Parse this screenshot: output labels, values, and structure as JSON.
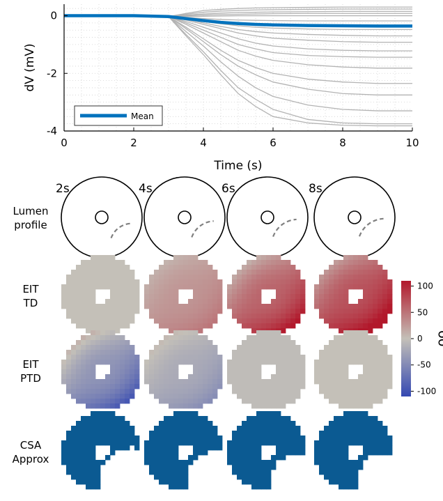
{
  "chart_data": [
    {
      "type": "line",
      "xlabel": "Time (s)",
      "ylabel": "dV (mV)",
      "xlim": [
        0,
        10
      ],
      "ylim": [
        -4,
        0.4
      ],
      "xticks": [
        0,
        2,
        4,
        6,
        8,
        10
      ],
      "yticks": [
        0,
        -2,
        -4
      ],
      "x_tick_labels": [
        "0",
        "2",
        "4",
        "6",
        "8",
        "10"
      ],
      "y_tick_labels": [
        "0",
        "-2",
        "-4"
      ],
      "grid": "dotted",
      "legend_position": "bottom-left",
      "trial_color": "#b3b3b3",
      "mean_color": "#0072bd",
      "x": [
        0,
        1,
        2,
        3,
        3.5,
        4,
        4.5,
        5,
        5.5,
        6,
        7,
        8,
        9,
        10
      ],
      "series": [
        {
          "values": [
            0,
            0,
            0,
            -0.03,
            0.08,
            0.18,
            0.22,
            0.25,
            0.27,
            0.28,
            0.29,
            0.3,
            0.3,
            0.3
          ]
        },
        {
          "values": [
            0,
            0,
            0,
            -0.03,
            0.05,
            0.12,
            0.16,
            0.18,
            0.2,
            0.21,
            0.22,
            0.23,
            0.23,
            0.23
          ]
        },
        {
          "values": [
            0,
            0,
            0,
            -0.03,
            0.02,
            0.06,
            0.09,
            0.11,
            0.12,
            0.13,
            0.14,
            0.15,
            0.15,
            0.15
          ]
        },
        {
          "values": [
            0,
            0,
            0,
            -0.03,
            0.0,
            0.02,
            0.04,
            0.05,
            0.06,
            0.07,
            0.08,
            0.08,
            0.08,
            0.08
          ]
        },
        {
          "values": [
            0,
            0,
            0,
            -0.03,
            -0.03,
            -0.02,
            -0.01,
            0.0,
            0.0,
            0.0,
            0.0,
            0.0,
            0.0,
            0.0
          ]
        },
        {
          "values": [
            0,
            0,
            0,
            -0.03,
            -0.06,
            -0.1,
            -0.13,
            -0.15,
            -0.16,
            -0.17,
            -0.18,
            -0.18,
            -0.18,
            -0.18
          ]
        },
        {
          "values": [
            0,
            0,
            0,
            -0.03,
            -0.08,
            -0.15,
            -0.2,
            -0.25,
            -0.28,
            -0.3,
            -0.32,
            -0.33,
            -0.33,
            -0.33
          ]
        },
        {
          "values": [
            0,
            0,
            0,
            -0.03,
            -0.1,
            -0.2,
            -0.28,
            -0.35,
            -0.4,
            -0.43,
            -0.46,
            -0.48,
            -0.48,
            -0.48
          ]
        },
        {
          "values": [
            0,
            0,
            0,
            -0.03,
            -0.12,
            -0.25,
            -0.37,
            -0.48,
            -0.55,
            -0.6,
            -0.65,
            -0.68,
            -0.7,
            -0.7
          ]
        },
        {
          "values": [
            0,
            0,
            0,
            -0.03,
            -0.15,
            -0.3,
            -0.45,
            -0.6,
            -0.7,
            -0.78,
            -0.85,
            -0.9,
            -0.92,
            -0.92
          ]
        },
        {
          "values": [
            0,
            0,
            0,
            -0.03,
            -0.2,
            -0.4,
            -0.6,
            -0.8,
            -0.95,
            -1.05,
            -1.15,
            -1.2,
            -1.22,
            -1.22
          ]
        },
        {
          "values": [
            0,
            0,
            0,
            -0.03,
            -0.25,
            -0.5,
            -0.75,
            -1.0,
            -1.15,
            -1.28,
            -1.38,
            -1.42,
            -1.44,
            -1.44
          ]
        },
        {
          "values": [
            0,
            0,
            0,
            -0.03,
            -0.3,
            -0.6,
            -0.9,
            -1.2,
            -1.4,
            -1.55,
            -1.7,
            -1.78,
            -1.82,
            -1.82
          ]
        },
        {
          "values": [
            0,
            0,
            0,
            -0.03,
            -0.4,
            -0.8,
            -1.2,
            -1.55,
            -1.8,
            -2.0,
            -2.2,
            -2.3,
            -2.35,
            -2.35
          ]
        },
        {
          "values": [
            0,
            0,
            0,
            -0.03,
            -0.45,
            -0.9,
            -1.35,
            -1.75,
            -2.05,
            -2.3,
            -2.55,
            -2.7,
            -2.75,
            -2.75
          ]
        },
        {
          "values": [
            0,
            0,
            0,
            -0.03,
            -0.55,
            -1.05,
            -1.6,
            -2.1,
            -2.5,
            -2.8,
            -3.1,
            -3.25,
            -3.3,
            -3.3
          ]
        },
        {
          "values": [
            0,
            0,
            0,
            -0.03,
            -0.65,
            -1.25,
            -1.9,
            -2.5,
            -2.9,
            -3.25,
            -3.6,
            -3.72,
            -3.75,
            -3.75
          ]
        },
        {
          "values": [
            0,
            0,
            0,
            -0.03,
            -0.7,
            -1.35,
            -2.05,
            -2.7,
            -3.15,
            -3.5,
            -3.72,
            -3.8,
            -3.82,
            -3.82
          ]
        },
        {
          "name": "Mean",
          "values": [
            0,
            0,
            0,
            -0.03,
            -0.1,
            -0.17,
            -0.23,
            -0.27,
            -0.3,
            -0.32,
            -0.34,
            -0.35,
            -0.36,
            -0.36
          ]
        }
      ]
    },
    {
      "type": "heatmap",
      "time_labels": [
        "2s",
        "4s",
        "6s",
        "8s"
      ],
      "row_labels": [
        [
          "Lumen",
          "profile"
        ],
        [
          "EIT",
          "TD"
        ],
        [
          "EIT",
          "PTD"
        ],
        [
          "CSA",
          "Approx"
        ]
      ],
      "colorbar_label": "δσ",
      "colorbar_ticks": [
        "100",
        "50",
        "0",
        "-50",
        "-100"
      ],
      "colorbar_tick_values": [
        100,
        50,
        0,
        -50,
        -100
      ],
      "colorbar_range": [
        -110,
        110
      ],
      "colormap": {
        "low": "#3448b2",
        "mid": "#c4c0b8",
        "high": "#b2182b"
      },
      "outline_color": "#000000",
      "occlusion_color": "#808080",
      "csa_color": "#0b5a92",
      "lumen_occlusion_extent": [
        0.25,
        0.4,
        0.5,
        0.55
      ],
      "td_fields": [
        {
          "base": 0,
          "grad": 0
        },
        {
          "base": 28,
          "grad": 22
        },
        {
          "base": 60,
          "grad": 55
        },
        {
          "base": 72,
          "grad": 55
        }
      ],
      "ptd_fields": [
        {
          "base": -40,
          "grad": 58
        },
        {
          "base": -20,
          "grad": 28
        },
        {
          "base": -4,
          "grad": 0
        },
        {
          "base": 0,
          "grad": 0
        }
      ],
      "csa_missing_extent": [
        0.35,
        0.25,
        0.2,
        0.22
      ]
    }
  ]
}
